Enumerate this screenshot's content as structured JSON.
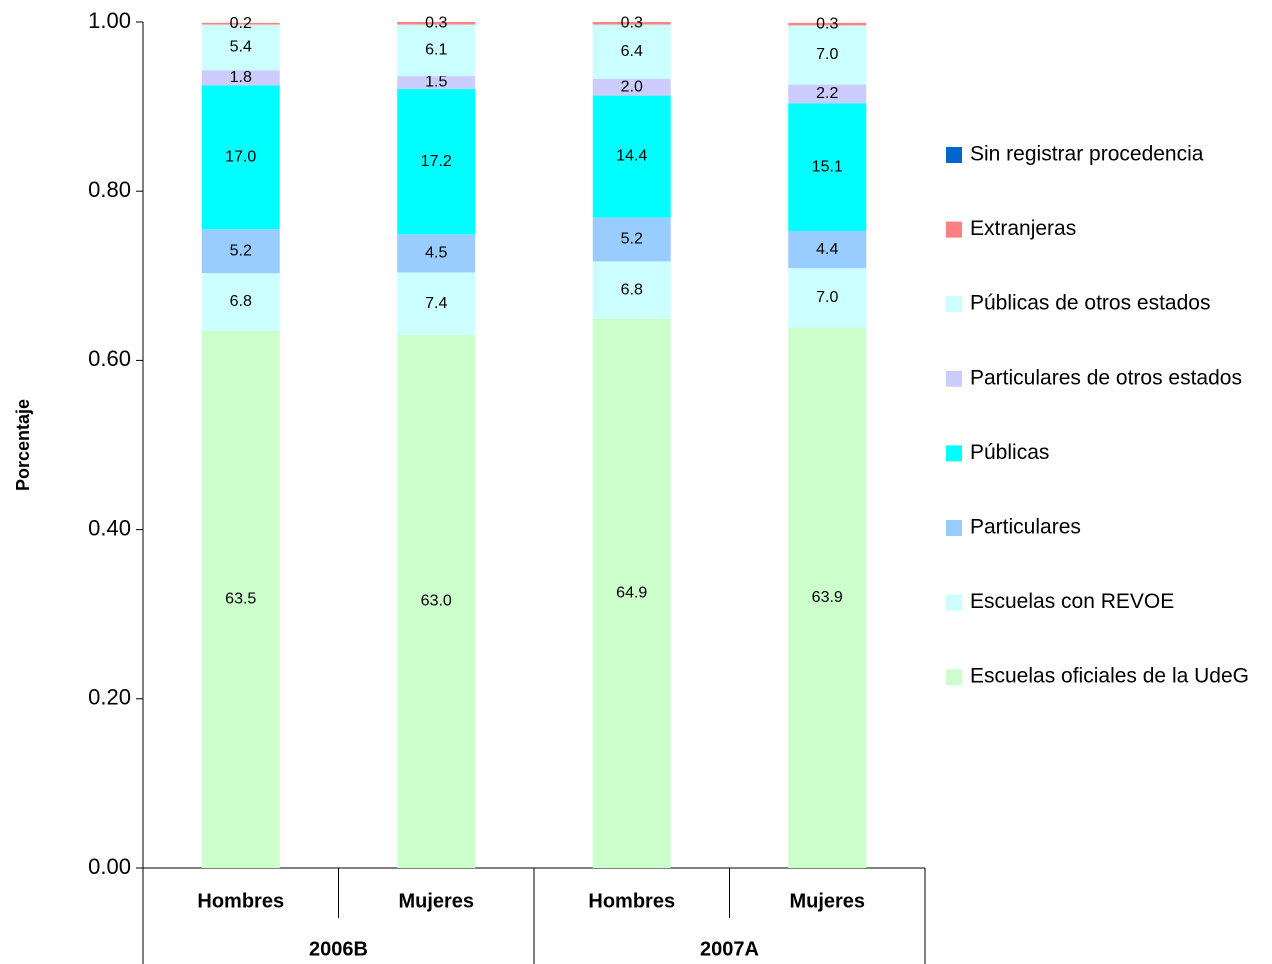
{
  "chart_data": {
    "type": "stacked_bar",
    "y_label": "Porcentaje",
    "categories": [
      "Hombres",
      "Mujeres",
      "Hombres",
      "Mujeres"
    ],
    "groups": [
      "2006B",
      "2007A"
    ],
    "ylim": [
      0,
      1
    ],
    "yticks": [
      {
        "value": 0,
        "label": "0.00"
      },
      {
        "value": 0.2,
        "label": "0.20"
      },
      {
        "value": 0.4,
        "label": "0.40"
      },
      {
        "value": 0.6,
        "label": "0.60"
      },
      {
        "value": 0.8,
        "label": "0.80"
      },
      {
        "value": 1,
        "label": "1.00"
      }
    ],
    "series": [
      {
        "name": "Escuelas oficiales de la UdeG",
        "color": "#ccffcc",
        "values": [
          0.635,
          0.63,
          0.649,
          0.639
        ],
        "value_labels": [
          "63.5",
          "63.0",
          "64.9",
          "63.9"
        ]
      },
      {
        "name": "Escuelas con REVOE",
        "color": "#ccffff",
        "values": [
          0.068,
          0.074,
          0.068,
          0.07
        ],
        "value_labels": [
          "6.8",
          "7.4",
          "6.8",
          "7.0"
        ]
      },
      {
        "name": "Particulares",
        "color": "#99ccff",
        "values": [
          0.052,
          0.045,
          0.052,
          0.044
        ],
        "value_labels": [
          "5.2",
          "4.5",
          "5.2",
          "4.4"
        ]
      },
      {
        "name": "Públicas",
        "color": "#00ffff",
        "values": [
          0.17,
          0.172,
          0.144,
          0.151
        ],
        "value_labels": [
          "17.0",
          "17.2",
          "14.4",
          "15.1"
        ]
      },
      {
        "name": "Particulares de otros estados",
        "color": "#ccccff",
        "values": [
          0.018,
          0.015,
          0.02,
          0.022
        ],
        "value_labels": [
          "1.8",
          "1.5",
          "2.0",
          "2.2"
        ]
      },
      {
        "name": "Públicas de otros estados",
        "color": "#ccffff",
        "values": [
          0.054,
          0.061,
          0.064,
          0.07
        ],
        "value_labels": [
          "5.4",
          "6.1",
          "6.4",
          "7.0"
        ]
      },
      {
        "name": "Extranjeras",
        "color": "#ff8080",
        "values": [
          0.002,
          0.003,
          0.003,
          0.003
        ],
        "value_labels": [
          "0.2",
          "0.3",
          "0.3",
          "0.3"
        ]
      },
      {
        "name": "Sin registrar procedencia",
        "color": "#0066cc",
        "values": [
          0,
          0,
          0,
          0
        ]
      }
    ]
  }
}
